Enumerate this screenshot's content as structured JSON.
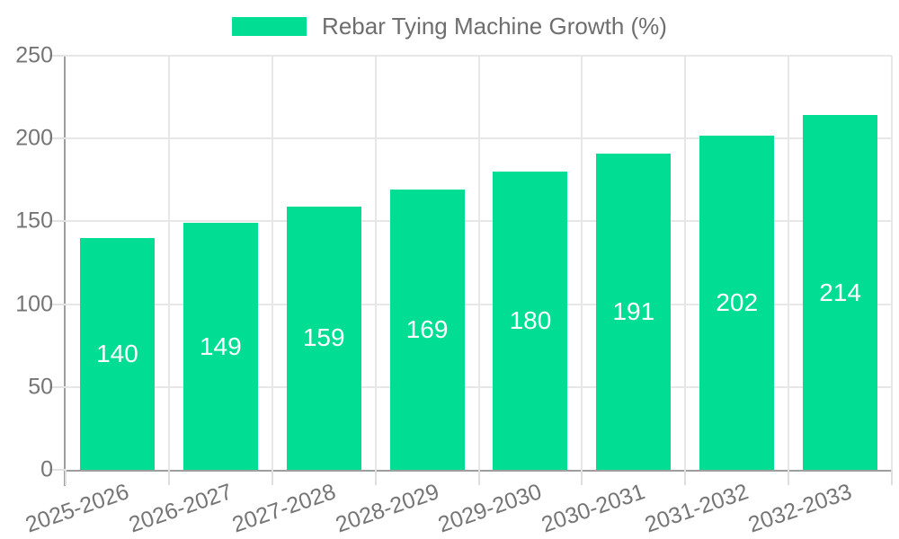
{
  "legend": {
    "label": "Rebar Tying Machine Growth (%)"
  },
  "chart_data": {
    "type": "bar",
    "title": "Rebar Tying Machine Growth (%)",
    "categories": [
      "2025-2026",
      "2026-2027",
      "2027-2028",
      "2028-2029",
      "2029-2030",
      "2030-2031",
      "2031-2032",
      "2032-2033"
    ],
    "series": [
      {
        "name": "Rebar Tying Machine Growth (%)",
        "values": [
          140,
          149,
          159,
          169,
          180,
          191,
          202,
          214
        ]
      }
    ],
    "xlabel": "",
    "ylabel": "",
    "ylim": [
      0,
      250
    ],
    "yticks": [
      0,
      50,
      100,
      150,
      200,
      250
    ],
    "grid": true,
    "legend_position": "top",
    "value_labels": "inside-center",
    "colors": {
      "bar": "#01de94",
      "bar_label": "#ffffff",
      "axis_line": "#9e9e9e",
      "gridline": "#e7e7e7",
      "tick_label": "#757575",
      "legend_text": "#6e6e6e",
      "background": "#ffffff"
    }
  }
}
